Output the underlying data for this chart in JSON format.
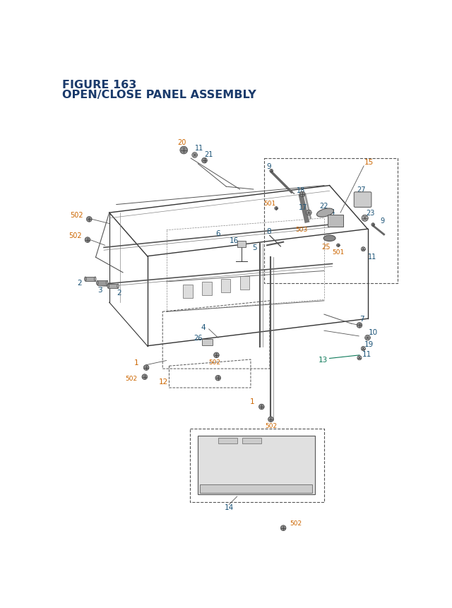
{
  "title_line1": "FIGURE 163",
  "title_line2": "OPEN/CLOSE PANEL ASSEMBLY",
  "title_color": "#1a3a6b",
  "bg_color": "#ffffff",
  "oc": "#cc6600",
  "bc": "#1a5276",
  "tc": "#0e7a5a",
  "lc": "#222222",
  "fig_width": 6.4,
  "fig_height": 8.62
}
